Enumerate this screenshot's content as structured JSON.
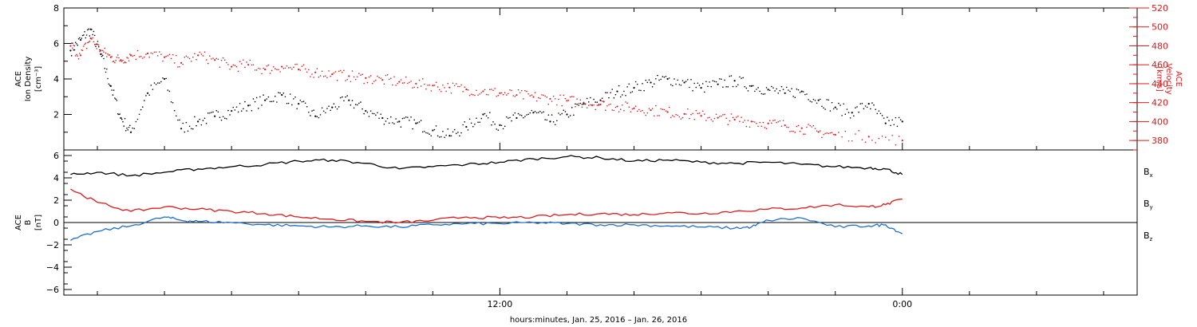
{
  "chart_data": [
    {
      "type": "scatter",
      "panel": "top",
      "left_axis": {
        "label_lines": [
          "ACE",
          "Ion Density"
        ],
        "unit": "[cm⁻³]",
        "ylim": [
          0,
          8
        ],
        "ticks": [
          "8",
          "6",
          "4",
          "2"
        ],
        "tick_values": [
          8,
          6,
          4,
          2
        ]
      },
      "right_axis": {
        "label_lines": [
          "ACE",
          "Velocity"
        ],
        "unit": "[km/s]",
        "ylim": [
          370,
          520
        ],
        "ticks": [
          "520",
          "500",
          "480",
          "460",
          "440",
          "420",
          "400",
          "380"
        ],
        "tick_values": [
          520,
          500,
          480,
          460,
          440,
          420,
          400,
          380
        ]
      },
      "series": [
        {
          "axis": "left",
          "color": "#000000",
          "x": [
            -12.8,
            -12.5,
            -12.2,
            -11.9,
            -11.6,
            -11.3,
            -11.0,
            -10.5,
            -10.0,
            -9.5,
            -9.0,
            -8.5,
            -8.0,
            -7.5,
            -7.0,
            -6.5,
            -6.0,
            -5.5,
            -5.0,
            -4.5,
            -4.0,
            -3.5,
            -3.0,
            -2.5,
            -2.0,
            -1.5,
            -1.0,
            -0.5,
            0.0,
            0.5,
            1.0,
            1.5,
            2.0,
            2.5,
            3.0,
            3.5,
            4.0,
            4.5,
            5.0,
            5.5,
            6.0,
            6.5,
            7.0,
            7.5,
            8.0,
            8.5,
            9.0,
            9.5,
            10.0,
            10.5,
            11.0,
            11.5,
            12.0
          ],
          "y": [
            5.6,
            6.2,
            6.8,
            5.4,
            3.6,
            1.8,
            1.0,
            3.2,
            4.0,
            1.2,
            1.6,
            1.9,
            2.2,
            2.5,
            2.8,
            3.1,
            2.6,
            1.9,
            2.4,
            2.8,
            2.2,
            1.8,
            1.6,
            1.5,
            1.1,
            0.8,
            1.3,
            2.0,
            1.4,
            1.8,
            2.1,
            1.6,
            2.0,
            2.6,
            2.8,
            3.3,
            3.5,
            3.8,
            4.0,
            3.8,
            3.5,
            3.7,
            3.9,
            3.6,
            3.4,
            3.2,
            3.3,
            2.8,
            2.4,
            2.1,
            2.6,
            1.5,
            1.6
          ]
        },
        {
          "axis": "right",
          "color": "#e0191b",
          "x": [
            -12.8,
            -12.5,
            -12.2,
            -11.9,
            -11.6,
            -11.3,
            -11.0,
            -10.5,
            -10.0,
            -9.5,
            -9.0,
            -8.5,
            -8.0,
            -7.5,
            -7.0,
            -6.5,
            -6.0,
            -5.5,
            -5.0,
            -4.5,
            -4.0,
            -3.5,
            -3.0,
            -2.5,
            -2.0,
            -1.5,
            -1.0,
            -0.5,
            0.0,
            0.5,
            1.0,
            1.5,
            2.0,
            2.5,
            3.0,
            3.5,
            4.0,
            4.5,
            5.0,
            5.5,
            6.0,
            6.5,
            7.0,
            7.5,
            8.0,
            8.5,
            9.0,
            9.5,
            10.0,
            11.0,
            12.0
          ],
          "y": [
            480,
            470,
            488,
            475,
            468,
            465,
            470,
            472,
            468,
            462,
            470,
            465,
            458,
            460,
            455,
            458,
            455,
            452,
            450,
            448,
            446,
            444,
            442,
            440,
            438,
            436,
            434,
            432,
            430,
            428,
            426,
            424,
            422,
            420,
            418,
            416,
            414,
            412,
            410,
            408,
            406,
            404,
            402,
            400,
            398,
            396,
            393,
            389,
            386,
            384,
            380
          ]
        }
      ]
    },
    {
      "type": "line",
      "panel": "bottom",
      "left_axis": {
        "label_lines": [
          "ACE",
          "B"
        ],
        "unit": "[nT]",
        "ylim": [
          -6.5,
          6.5
        ],
        "ticks": [
          "6",
          "4",
          "2",
          "0",
          "−2",
          "−4",
          "−6"
        ],
        "tick_values": [
          6,
          4,
          2,
          0,
          -2,
          -4,
          -6
        ]
      },
      "zero_line": true,
      "series": [
        {
          "name": "B",
          "subscript": "x",
          "color": "#000000",
          "x": [
            -12.8,
            -12.0,
            -11.0,
            -10.0,
            -9.0,
            -8.0,
            -7.0,
            -6.0,
            -5.0,
            -4.0,
            -3.0,
            -2.0,
            -1.0,
            0.0,
            1.0,
            2.0,
            3.0,
            4.0,
            5.0,
            6.0,
            7.0,
            8.0,
            9.0,
            10.0,
            11.0,
            11.5,
            12.0
          ],
          "y": [
            4.3,
            4.5,
            4.2,
            4.5,
            4.8,
            5.0,
            5.2,
            5.5,
            5.6,
            5.3,
            4.8,
            5.0,
            5.2,
            5.4,
            5.7,
            5.9,
            5.8,
            5.5,
            5.6,
            5.4,
            5.3,
            5.4,
            5.2,
            5.0,
            4.9,
            4.8,
            4.3
          ]
        },
        {
          "name": "B",
          "subscript": "y",
          "color": "#1f6fcf",
          "x": [
            -12.8,
            -12.0,
            -11.0,
            -10.0,
            -9.5,
            -9.0,
            -8.0,
            -7.0,
            -6.0,
            -5.0,
            -4.0,
            -3.0,
            -2.0,
            -1.0,
            0.0,
            1.0,
            2.0,
            3.0,
            4.0,
            5.0,
            6.0,
            7.0,
            7.5,
            8.0,
            9.0,
            10.0,
            11.0,
            11.5,
            12.0
          ],
          "y": [
            -1.6,
            -0.8,
            -0.3,
            0.5,
            0.2,
            0.1,
            0.0,
            -0.2,
            -0.3,
            -0.4,
            -0.3,
            -0.4,
            -0.2,
            -0.1,
            -0.1,
            0.0,
            -0.1,
            -0.2,
            -0.2,
            -0.3,
            -0.4,
            -0.5,
            -0.4,
            0.2,
            0.4,
            -0.4,
            -0.3,
            -0.2,
            -1.0
          ]
        },
        {
          "name": "B",
          "subscript": "z",
          "color": "#e0191b",
          "x": [
            -12.8,
            -12.0,
            -11.0,
            -10.0,
            -9.0,
            -8.0,
            -7.0,
            -6.0,
            -5.0,
            -4.0,
            -3.0,
            -2.0,
            -1.0,
            0.0,
            1.0,
            2.0,
            3.0,
            4.0,
            5.0,
            6.0,
            7.0,
            8.0,
            9.0,
            10.0,
            11.0,
            11.5,
            12.0
          ],
          "y": [
            3.0,
            1.8,
            1.0,
            1.4,
            1.2,
            1.0,
            0.8,
            0.5,
            0.3,
            0.1,
            0.0,
            0.2,
            0.5,
            0.4,
            0.5,
            0.7,
            0.8,
            0.7,
            0.9,
            0.8,
            1.0,
            1.2,
            1.3,
            1.6,
            1.4,
            1.6,
            2.1
          ]
        }
      ]
    }
  ],
  "x_axis": {
    "range": [
      -13,
      19
    ],
    "major_ticks": [
      0,
      12
    ],
    "major_labels": [
      "12:00",
      "0:00"
    ],
    "minor_step": 2
  },
  "x_title": "hours:minutes, Jan. 25, 2016 – Jan. 26, 2016"
}
